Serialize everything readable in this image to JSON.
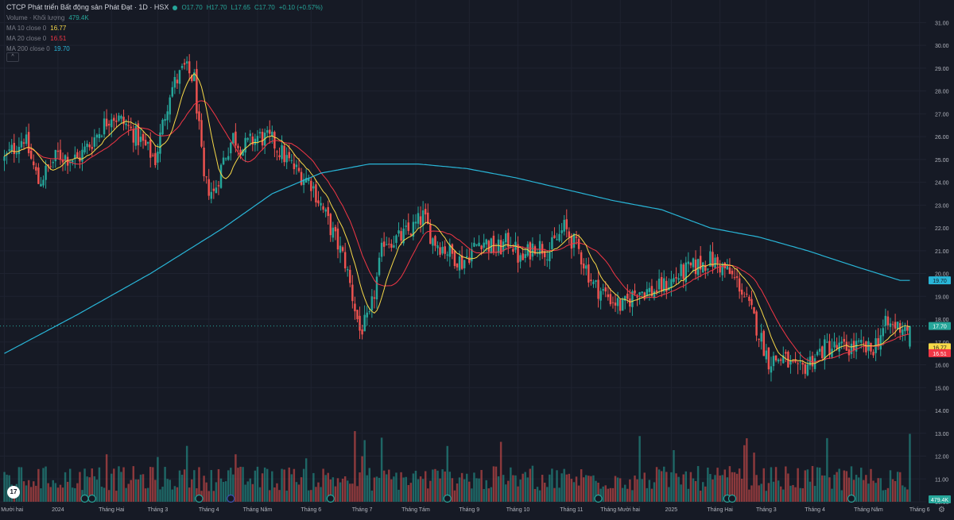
{
  "header": {
    "title": "CTCP Phát triển Bất động sản Phát Đạt · 1D · HSX",
    "ohlc": {
      "o": "O17.70",
      "h": "H17.70",
      "l": "L17.65",
      "c": "C17.70",
      "change": "+0.10 (+0.57%)"
    },
    "volume_label": "Volume · Khối lượng",
    "volume_value": "479.4K",
    "ma10_label": "MA 10 close 0",
    "ma10_value": "16.77",
    "ma20_label": "MA 20 close 0",
    "ma20_value": "16.51",
    "ma200_label": "MA 200 close 0",
    "ma200_value": "19.70",
    "collapse_icon": "chevron-up-icon"
  },
  "badges": {
    "ma200": "19.70",
    "last": "17.70",
    "ma10": "16.77",
    "ma20": "16.51",
    "volume": "479.4K"
  },
  "colors": {
    "background": "#161a25",
    "up": "#26a69a",
    "down": "#ef5350",
    "ma10": "#f7d948",
    "ma20": "#f23645",
    "ma200": "#29b6d8",
    "last_price": "#26a69a"
  },
  "chart_data": {
    "type": "candlestick",
    "title": "CTCP Phát triển Bất động sản Phát Đạt · 1D · HSX",
    "y_ticks": [
      "31.00",
      "30.00",
      "29.00",
      "28.00",
      "27.00",
      "26.00",
      "25.00",
      "24.00",
      "23.00",
      "22.00",
      "21.00",
      "20.00",
      "19.00",
      "18.00",
      "17.00",
      "16.00",
      "15.00",
      "14.00",
      "13.00",
      "12.00",
      "11.00",
      "10.00"
    ],
    "ylim": [
      10.0,
      31.5
    ],
    "x_ticks": [
      "tháng Mười hai",
      "2024",
      "Tháng Hai",
      "Tháng 3",
      "Tháng 4",
      "Tháng Năm",
      "Tháng 6",
      "Tháng 7",
      "Tháng Tám",
      "Tháng 9",
      "Tháng 10",
      "Tháng 11",
      "Tháng Mười hai",
      "2025",
      "Tháng Hai",
      "Tháng 3",
      "Tháng 4",
      "Tháng Năm",
      "Tháng 6"
    ],
    "x_tick_positions_days": [
      0,
      22,
      44,
      63,
      84,
      104,
      126,
      147,
      169,
      191,
      211,
      233,
      253,
      274,
      294,
      313,
      333,
      355,
      376
    ],
    "price_anchors": {
      "days": [
        0,
        8,
        14,
        22,
        30,
        36,
        44,
        50,
        56,
        62,
        68,
        74,
        78,
        82,
        86,
        90,
        94,
        98,
        104,
        110,
        116,
        120,
        126,
        132,
        140,
        146,
        150,
        156,
        162,
        168,
        172,
        176,
        182,
        188,
        196,
        202,
        208,
        212,
        218,
        224,
        230,
        236,
        242,
        248,
        254,
        260,
        266,
        272,
        278,
        284,
        290,
        296,
        302,
        308,
        314,
        320,
        326,
        332,
        338,
        344,
        350,
        356,
        362,
        368,
        372
      ],
      "closes": [
        25.0,
        26.0,
        24.0,
        25.2,
        25.0,
        25.8,
        27.0,
        26.5,
        25.8,
        25.0,
        28.0,
        29.0,
        28.5,
        24.0,
        23.5,
        25.0,
        26.0,
        25.5,
        26.0,
        25.8,
        25.0,
        24.5,
        24.0,
        22.5,
        20.5,
        17.5,
        18.0,
        21.5,
        21.5,
        22.0,
        22.5,
        21.5,
        21.0,
        20.5,
        21.5,
        21.0,
        21.5,
        20.5,
        21.3,
        21.0,
        22.0,
        21.0,
        19.5,
        19.0,
        18.5,
        19.3,
        19.2,
        19.5,
        20.0,
        20.3,
        20.6,
        20.2,
        19.5,
        18.0,
        16.2,
        16.3,
        15.6,
        16.3,
        16.8,
        16.7,
        16.8,
        16.6,
        17.7,
        17.7,
        17.7
      ]
    },
    "ma200_anchors": {
      "days": [
        0,
        30,
        60,
        90,
        110,
        130,
        150,
        170,
        190,
        210,
        230,
        250,
        270,
        290,
        310,
        330,
        350,
        368
      ],
      "values": [
        16.5,
        18.2,
        20.0,
        22.0,
        23.5,
        24.4,
        24.8,
        24.8,
        24.6,
        24.2,
        23.7,
        23.2,
        22.8,
        22.0,
        21.6,
        21.0,
        20.3,
        19.7
      ]
    },
    "series": [
      {
        "name": "Volume · Khối lượng",
        "last": "479.4K"
      },
      {
        "name": "MA 10 close 0",
        "last": 16.77
      },
      {
        "name": "MA 20 close 0",
        "last": 16.51
      },
      {
        "name": "MA 200 close 0",
        "last": 19.7
      }
    ],
    "last_price": 17.7,
    "grid": true
  }
}
